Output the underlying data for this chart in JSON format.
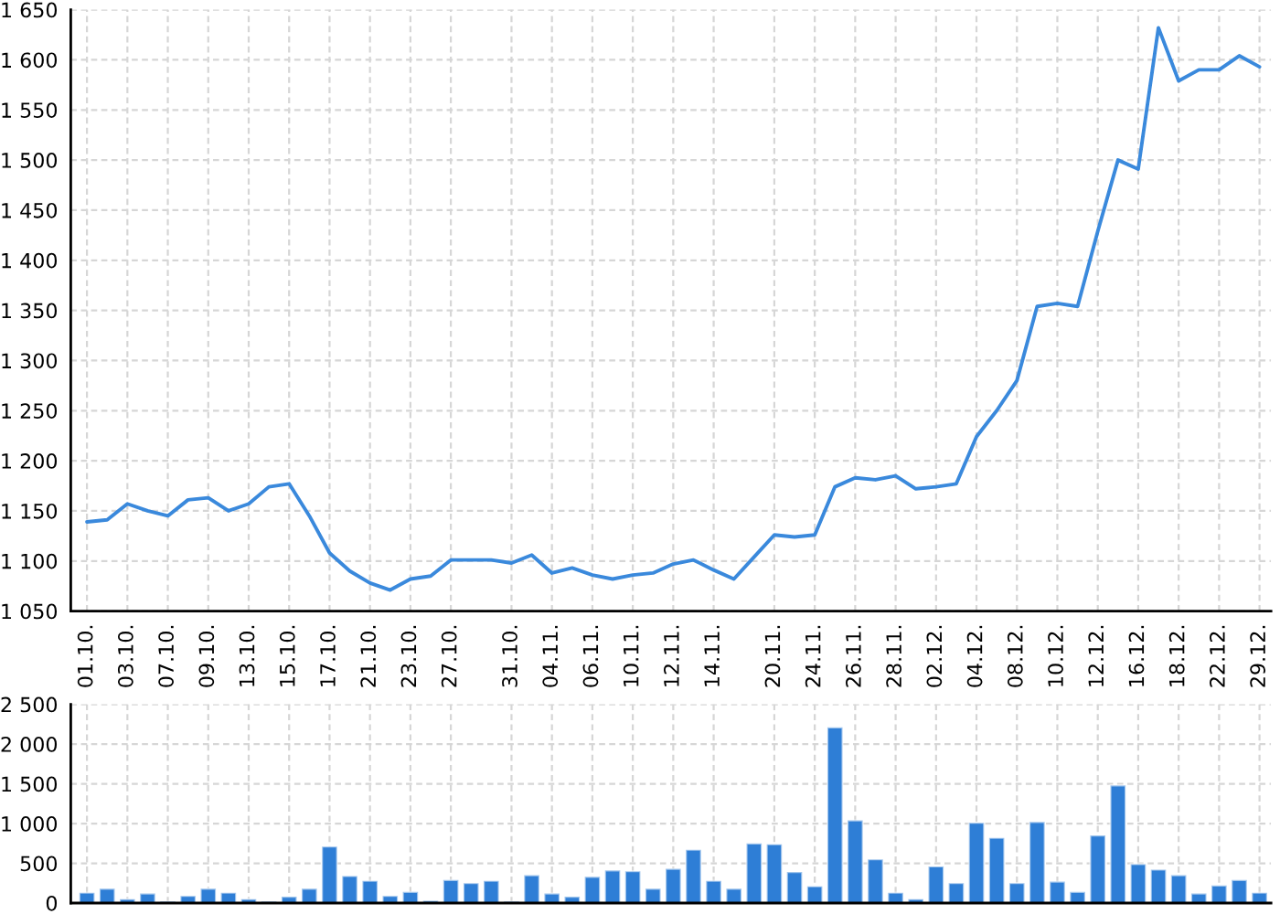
{
  "chart_data": [
    {
      "type": "line",
      "color": "#3a89dc",
      "categories": [
        "01.10.",
        null,
        "03.10.",
        null,
        "07.10.",
        null,
        "09.10.",
        null,
        "13.10.",
        null,
        "15.10.",
        null,
        "17.10.",
        null,
        "21.10.",
        null,
        "23.10.",
        null,
        "27.10.",
        null,
        null,
        "31.10.",
        null,
        "04.11.",
        null,
        "06.11.",
        null,
        "10.11.",
        null,
        "12.11.",
        null,
        "14.11.",
        null,
        null,
        "20.11.",
        null,
        "24.11.",
        null,
        "26.11.",
        null,
        "28.11.",
        null,
        "02.12.",
        null,
        "04.12.",
        null,
        "08.12.",
        null,
        "10.12.",
        null,
        "12.12.",
        null,
        "16.12.",
        null,
        "18.12.",
        null,
        "22.12.",
        null,
        "29.12."
      ],
      "values": [
        1139,
        1141,
        1157,
        1150,
        1145,
        1161,
        1163,
        1150,
        1157,
        1174,
        1177,
        1145,
        1108,
        1090,
        1078,
        1071,
        1082,
        1085,
        1101,
        1101,
        1101,
        1098,
        1106,
        1088,
        1093,
        1086,
        1082,
        1086,
        1088,
        1097,
        1101,
        1091,
        1082,
        1104,
        1126,
        1124,
        1126,
        1174,
        1183,
        1181,
        1185,
        1172,
        1174,
        1177,
        1224,
        1250,
        1280,
        1354,
        1357,
        1354,
        1429,
        1500,
        1491,
        1632,
        1579,
        1590,
        1590,
        1604,
        1593
      ],
      "ylim": [
        1050,
        1650
      ],
      "yticks": [
        {
          "value": 1050,
          "label": "1 050"
        },
        {
          "value": 1100,
          "label": "1 100"
        },
        {
          "value": 1150,
          "label": "1 150"
        },
        {
          "value": 1200,
          "label": "1 200"
        },
        {
          "value": 1250,
          "label": "1 250"
        },
        {
          "value": 1300,
          "label": "1 300"
        },
        {
          "value": 1350,
          "label": "1 350"
        },
        {
          "value": 1400,
          "label": "1 400"
        },
        {
          "value": 1450,
          "label": "1 450"
        },
        {
          "value": 1500,
          "label": "1 500"
        },
        {
          "value": 1550,
          "label": "1 550"
        },
        {
          "value": 1600,
          "label": "1 600"
        },
        {
          "value": 1650,
          "label": "1 650"
        }
      ],
      "grid": true,
      "line_style": "solid",
      "marker": "none"
    },
    {
      "type": "bar",
      "color": "#2e7ed6",
      "tick_labels": "y",
      "categories": [
        "01.10.",
        null,
        "03.10.",
        null,
        "07.10.",
        null,
        "09.10.",
        null,
        "13.10.",
        null,
        "15.10.",
        null,
        "17.10.",
        null,
        "21.10.",
        null,
        "23.10.",
        null,
        "27.10.",
        null,
        null,
        "31.10.",
        null,
        "04.11.",
        null,
        "06.11.",
        null,
        "10.11.",
        null,
        "12.11.",
        null,
        "14.11.",
        null,
        null,
        "20.11.",
        null,
        "24.11.",
        null,
        "26.11.",
        null,
        "28.11.",
        null,
        "02.12.",
        null,
        "04.12.",
        null,
        "08.12.",
        null,
        "10.12.",
        null,
        "12.12.",
        null,
        "16.12.",
        null,
        "18.12.",
        null,
        "22.12.",
        null,
        "29.12."
      ],
      "values": [
        130,
        180,
        50,
        120,
        20,
        90,
        180,
        130,
        50,
        20,
        80,
        180,
        710,
        340,
        280,
        90,
        140,
        30,
        290,
        250,
        280,
        20,
        350,
        120,
        80,
        330,
        410,
        400,
        180,
        430,
        670,
        280,
        180,
        750,
        740,
        390,
        210,
        2210,
        1040,
        550,
        130,
        50,
        460,
        250,
        1010,
        820,
        250,
        1020,
        270,
        140,
        850,
        1480,
        490,
        420,
        350,
        120,
        220,
        290,
        130
      ],
      "ylim": [
        0,
        2500
      ],
      "yticks": [
        0,
        500,
        {
          "value": 1000,
          "label": "1 000"
        },
        {
          "value": 1500,
          "label": "1 500"
        },
        {
          "value": 2000,
          "label": "2 000"
        },
        {
          "value": 2500,
          "label": "2 500"
        }
      ],
      "grid": true
    }
  ]
}
